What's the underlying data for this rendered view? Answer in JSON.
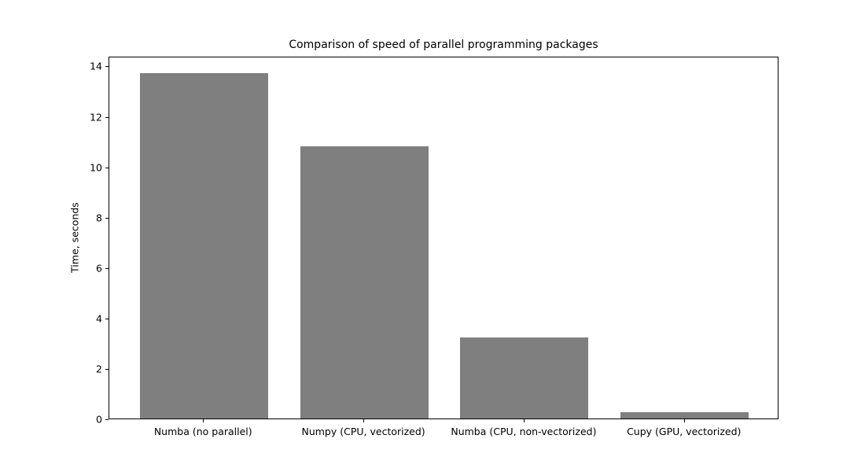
{
  "chart_data": {
    "type": "bar",
    "title": "Comparison of speed of parallel programming packages",
    "categories": [
      "Numba (no parallel)",
      "Numpy (CPU, vectorized)",
      "Numba (CPU, non-vectorized)",
      "Cupy (GPU, vectorized)"
    ],
    "values": [
      13.7,
      10.8,
      3.2,
      0.25
    ],
    "xlabel": "",
    "ylabel": "Time, seconds",
    "ylim": [
      0,
      14.39
    ],
    "xlim": [
      -0.59,
      3.59
    ],
    "yticks": [
      0,
      2,
      4,
      6,
      8,
      10,
      12,
      14
    ],
    "bar_width_units": 0.8,
    "bar_color": "#7f7f7f",
    "grid": false,
    "legend": null,
    "background_color": "#ffffff",
    "spine_color": "#000000"
  }
}
